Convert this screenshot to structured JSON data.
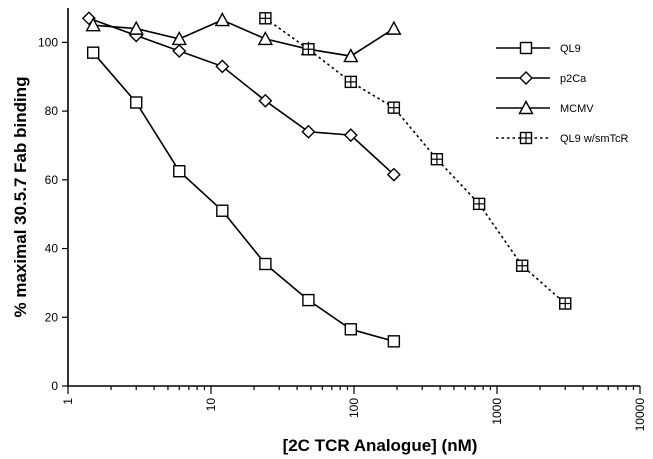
{
  "chart_data": {
    "type": "line",
    "title": "",
    "xlabel": "[2C TCR Analogue] (nM)",
    "ylabel": "% maximal 30.5.7 Fab binding",
    "x_scale": "log",
    "xlim": [
      1,
      10000
    ],
    "ylim": [
      0,
      110
    ],
    "x_ticks": [
      1,
      10,
      100,
      1000,
      10000
    ],
    "x_tick_labels": [
      "1",
      "10",
      "100",
      "1000",
      "10000"
    ],
    "y_ticks": [
      0,
      20,
      40,
      60,
      80,
      100
    ],
    "y_tick_labels": [
      "0",
      "20",
      "40",
      "60",
      "80",
      "100"
    ],
    "grid": false,
    "legend_position": "top-right",
    "series": [
      {
        "name": "QL9",
        "marker": "square",
        "line": "solid",
        "x": [
          1.5,
          3,
          6,
          12,
          24,
          48,
          95,
          190
        ],
        "y": [
          97,
          82.5,
          62.5,
          51,
          35.5,
          25,
          16.5,
          13
        ]
      },
      {
        "name": "p2Ca",
        "marker": "diamond",
        "line": "solid",
        "x": [
          1.4,
          3,
          6,
          12,
          24,
          48,
          95,
          190
        ],
        "y": [
          107,
          102,
          97.5,
          93,
          83,
          74,
          73,
          61.5
        ]
      },
      {
        "name": "MCMV",
        "marker": "triangle",
        "line": "solid",
        "x": [
          1.5,
          3,
          6,
          12,
          24,
          48,
          95,
          190
        ],
        "y": [
          105,
          104,
          101,
          106.5,
          101,
          98,
          96,
          104
        ]
      },
      {
        "name": "QL9 w/smTcR",
        "marker": "square-plus",
        "line": "dotted",
        "x": [
          24,
          48,
          95,
          190,
          380,
          750,
          1500,
          3000
        ],
        "y": [
          107,
          98,
          88.5,
          81,
          66,
          53,
          35,
          24
        ]
      }
    ]
  }
}
